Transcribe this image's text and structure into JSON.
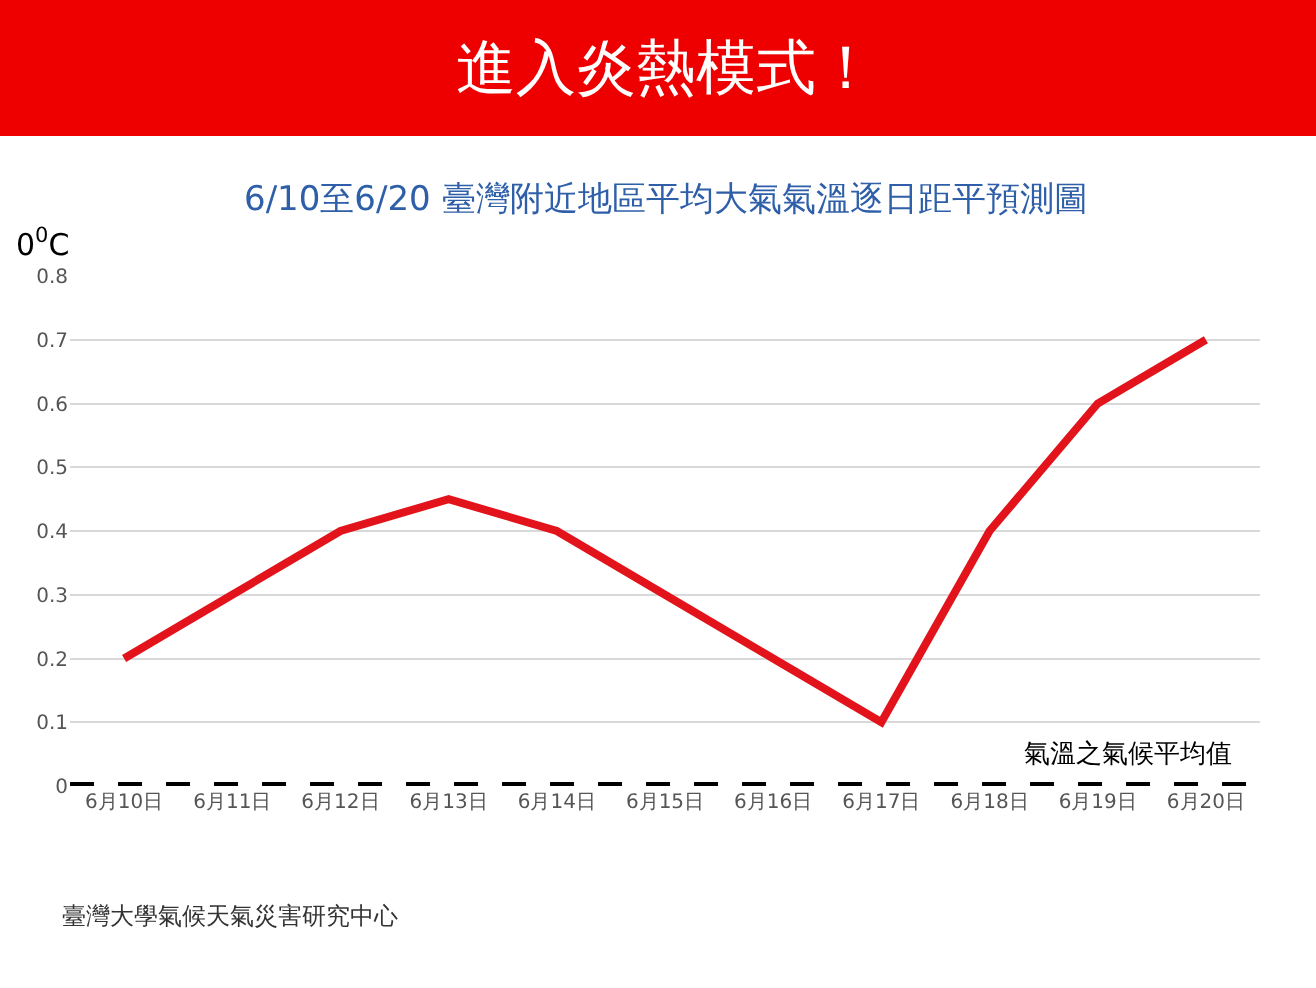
{
  "chart_data": {
    "type": "line",
    "title": "進入炎熱模式！",
    "subtitle": "6/10至6/20 臺灣附近地區平均大氣氣溫逐日距平預測圖",
    "ylabel": "0$^{0}$C",
    "categories": [
      "6月10日",
      "6月11日",
      "6月12日",
      "6月13日",
      "6月14日",
      "6月15日",
      "6月16日",
      "6月17日",
      "6月18日",
      "6月19日",
      "6月20日"
    ],
    "series": [
      {
        "color": "#e3131b",
        "values": [
          0.2,
          0.3,
          0.4,
          0.45,
          0.4,
          0.3,
          0.2,
          0.1,
          0.4,
          0.6,
          0.7
        ]
      }
    ],
    "ylim": [
      0,
      0.8
    ],
    "yticks": [
      0,
      0.1,
      0.2,
      0.3,
      0.4,
      0.5,
      0.6,
      0.7,
      0.8
    ],
    "grid": "y",
    "legend": false,
    "marker": "none",
    "line_style": "solid",
    "ref_lines": [
      {
        "axis": "y",
        "value": 0,
        "label": "氣溫之氣候平均值",
        "color": "#000000",
        "line_style": "dashed"
      }
    ],
    "annotations": [
      "臺灣大學氣候天氣災害研究中心"
    ]
  }
}
